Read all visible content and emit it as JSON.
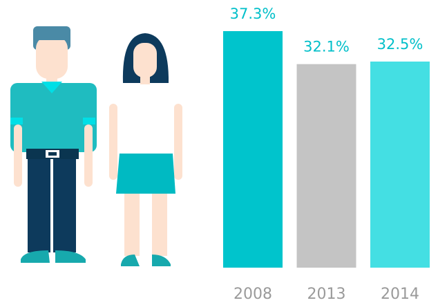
{
  "chart_data": {
    "type": "bar",
    "categories": [
      "2008",
      "2013",
      "2014"
    ],
    "values": [
      37.3,
      32.1,
      32.5
    ],
    "value_labels": [
      "37.3%",
      "32.1%",
      "32.5%"
    ],
    "colors": [
      "#00c4cc",
      "#c4c4c4",
      "#44dfe3"
    ]
  }
}
